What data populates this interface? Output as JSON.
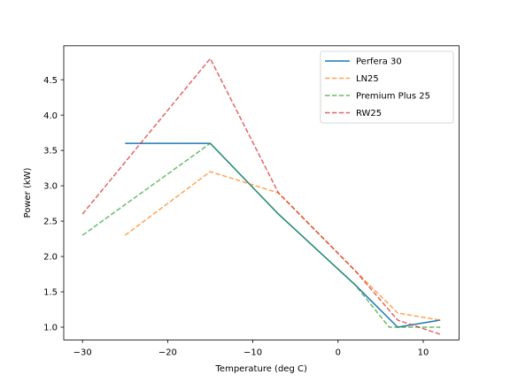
{
  "chart_data": {
    "type": "line",
    "title": "",
    "xlabel": "Temperature (deg C)",
    "ylabel": "Power (kW)",
    "xlim": [
      -32.2,
      14.2
    ],
    "ylim": [
      0.82,
      4.98
    ],
    "xticks": [
      -30,
      -20,
      -10,
      0,
      10
    ],
    "xtick_labels": [
      "−30",
      "−20",
      "−10",
      "0",
      "10"
    ],
    "yticks": [
      1.0,
      1.5,
      2.0,
      2.5,
      3.0,
      3.5,
      4.0,
      4.5
    ],
    "ytick_labels": [
      "1.0",
      "1.5",
      "2.0",
      "2.5",
      "3.0",
      "3.5",
      "4.0",
      "4.5"
    ],
    "grid": false,
    "legend_position": "top-right",
    "series": [
      {
        "name": "Perfera 30",
        "color": "#1f77b4",
        "style": "solid",
        "x": [
          -25,
          -15,
          -7,
          2,
          7,
          12
        ],
        "y": [
          3.6,
          3.6,
          2.6,
          1.6,
          1.0,
          1.1
        ]
      },
      {
        "name": "LN25",
        "color": "#ff7f0e",
        "style": "dashed",
        "x": [
          -25,
          -15,
          -7,
          2,
          7,
          12
        ],
        "y": [
          2.3,
          3.2,
          2.9,
          1.8,
          1.2,
          1.1
        ]
      },
      {
        "name": "Premium Plus 25",
        "color": "#2ca02c",
        "style": "dashed",
        "x": [
          -30,
          -15,
          -7,
          2,
          6,
          12
        ],
        "y": [
          2.3,
          3.6,
          2.6,
          1.6,
          1.0,
          1.0
        ]
      },
      {
        "name": "RW25",
        "color": "#d62728",
        "style": "dashed",
        "x": [
          -30,
          -15,
          -7,
          2,
          7,
          12
        ],
        "y": [
          2.6,
          4.8,
          2.9,
          1.8,
          1.1,
          0.9
        ]
      }
    ]
  }
}
